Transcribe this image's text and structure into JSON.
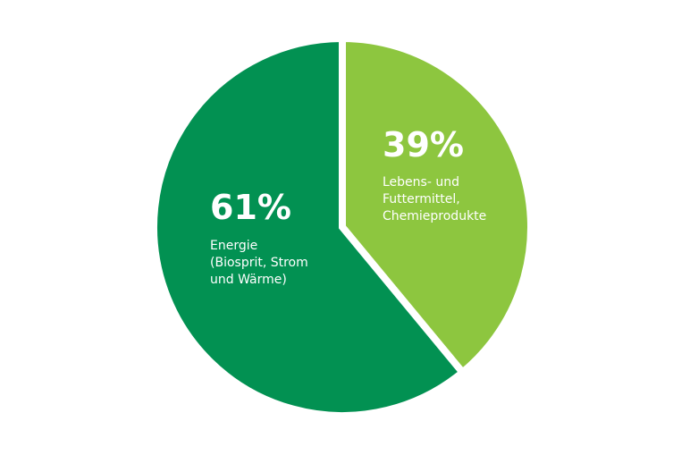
{
  "chart_data": {
    "type": "pie",
    "slices": [
      {
        "value": 61,
        "percent_label": "61%",
        "label_lines": [
          "Energie",
          "(Biosprit, Strom",
          "und Wärme)"
        ],
        "color": "#029152"
      },
      {
        "value": 39,
        "percent_label": "39%",
        "label_lines": [
          "Lebens- und",
          "Futtermittel,",
          "Chemieprodukte"
        ],
        "color": "#8dc63f"
      }
    ],
    "separator_color": "#ffffff",
    "legend": "none"
  }
}
